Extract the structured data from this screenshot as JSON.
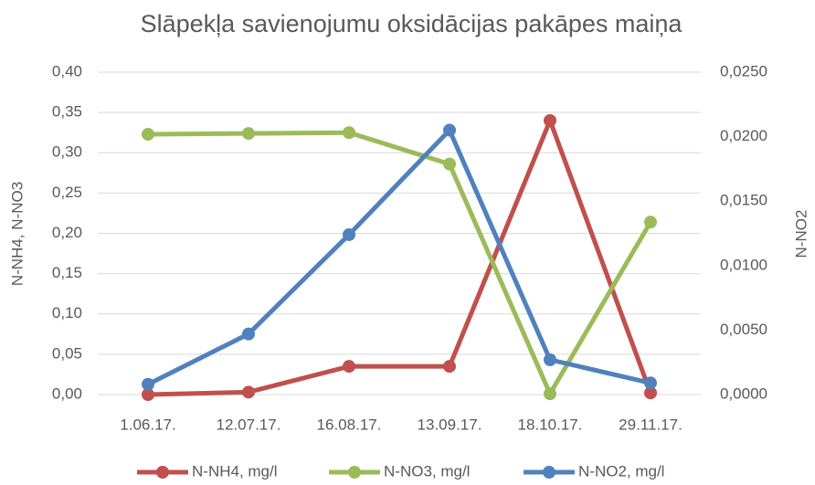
{
  "chart_data": {
    "type": "line",
    "title": "Slāpekļa savienojumu oksidācijas pakāpes maiņa",
    "y_label": "N-NH4, N-NO3",
    "y2_label": "N-NO2",
    "categories": [
      "1.06.17.",
      "12.07.17.",
      "16.08.17.",
      "13.09.17.",
      "18.10.17.",
      "29.11.17."
    ],
    "series": [
      {
        "name": "N-NH4, mg/l",
        "color": "#c0504d",
        "values": [
          0.0,
          0.003,
          0.035,
          0.035,
          0.34,
          0.002
        ]
      },
      {
        "name": "N-NO3, mg/l",
        "color": "#9bbb59",
        "values": [
          0.323,
          0.324,
          0.325,
          0.286,
          0.001,
          0.214
        ]
      },
      {
        "name": "N-NO2, mg/l",
        "color": "#4f81bd",
        "axis": "y2",
        "values": [
          0.0008,
          0.0047,
          0.0124,
          0.0205,
          0.0027,
          0.0009
        ]
      }
    ],
    "ylim": [
      0,
      0.4
    ],
    "yticks": [
      {
        "value": 0,
        "label": "0,00"
      },
      {
        "value": 0.05,
        "label": "0,05"
      },
      {
        "value": 0.1,
        "label": "0,10"
      },
      {
        "value": 0.15,
        "label": "0,15"
      },
      {
        "value": 0.2,
        "label": "0,20"
      },
      {
        "value": 0.25,
        "label": "0,25"
      },
      {
        "value": 0.3,
        "label": "0,30"
      },
      {
        "value": 0.35,
        "label": "0,35"
      },
      {
        "value": 0.4,
        "label": "0,40"
      }
    ],
    "y2lim": [
      0,
      0.025
    ],
    "y2ticks": [
      {
        "value": 0,
        "label": "0,0000"
      },
      {
        "value": 0.005,
        "label": "0,0050"
      },
      {
        "value": 0.01,
        "label": "0,0100"
      },
      {
        "value": 0.015,
        "label": "0,0150"
      },
      {
        "value": 0.02,
        "label": "0,0200"
      },
      {
        "value": 0.025,
        "label": "0,0250"
      }
    ],
    "grid": true,
    "legend": "bottom"
  }
}
